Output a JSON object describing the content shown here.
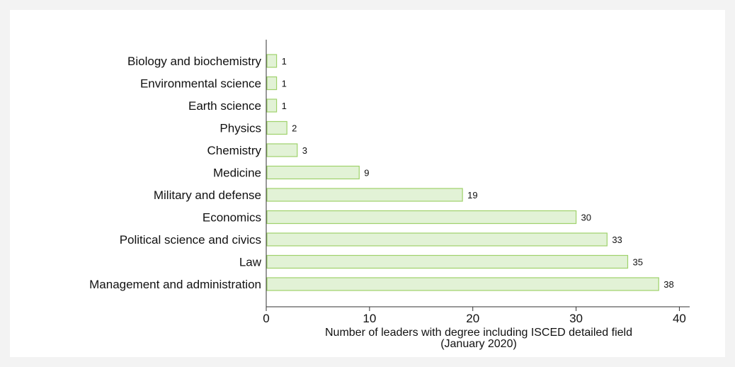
{
  "colors": {
    "bar_fill": "#e2f2d6",
    "bar_stroke": "#9fd26b",
    "axis": "#333333"
  },
  "chart_data": {
    "type": "bar",
    "orientation": "horizontal",
    "categories": [
      "Biology and biochemistry",
      "Environmental science",
      "Earth science",
      "Physics",
      "Chemistry",
      "Medicine",
      "Military and defense",
      "Economics",
      "Political science and civics",
      "Law",
      "Management and administration"
    ],
    "values": [
      1,
      1,
      1,
      2,
      3,
      9,
      19,
      30,
      33,
      35,
      38
    ],
    "xlim": [
      0,
      41
    ],
    "xticks": [
      0,
      10,
      20,
      30,
      40
    ],
    "xlabel_line1": "Number of leaders with degree including ISCED detailed field",
    "xlabel_line2": "(January 2020)",
    "grid": false,
    "data_labels": true
  }
}
